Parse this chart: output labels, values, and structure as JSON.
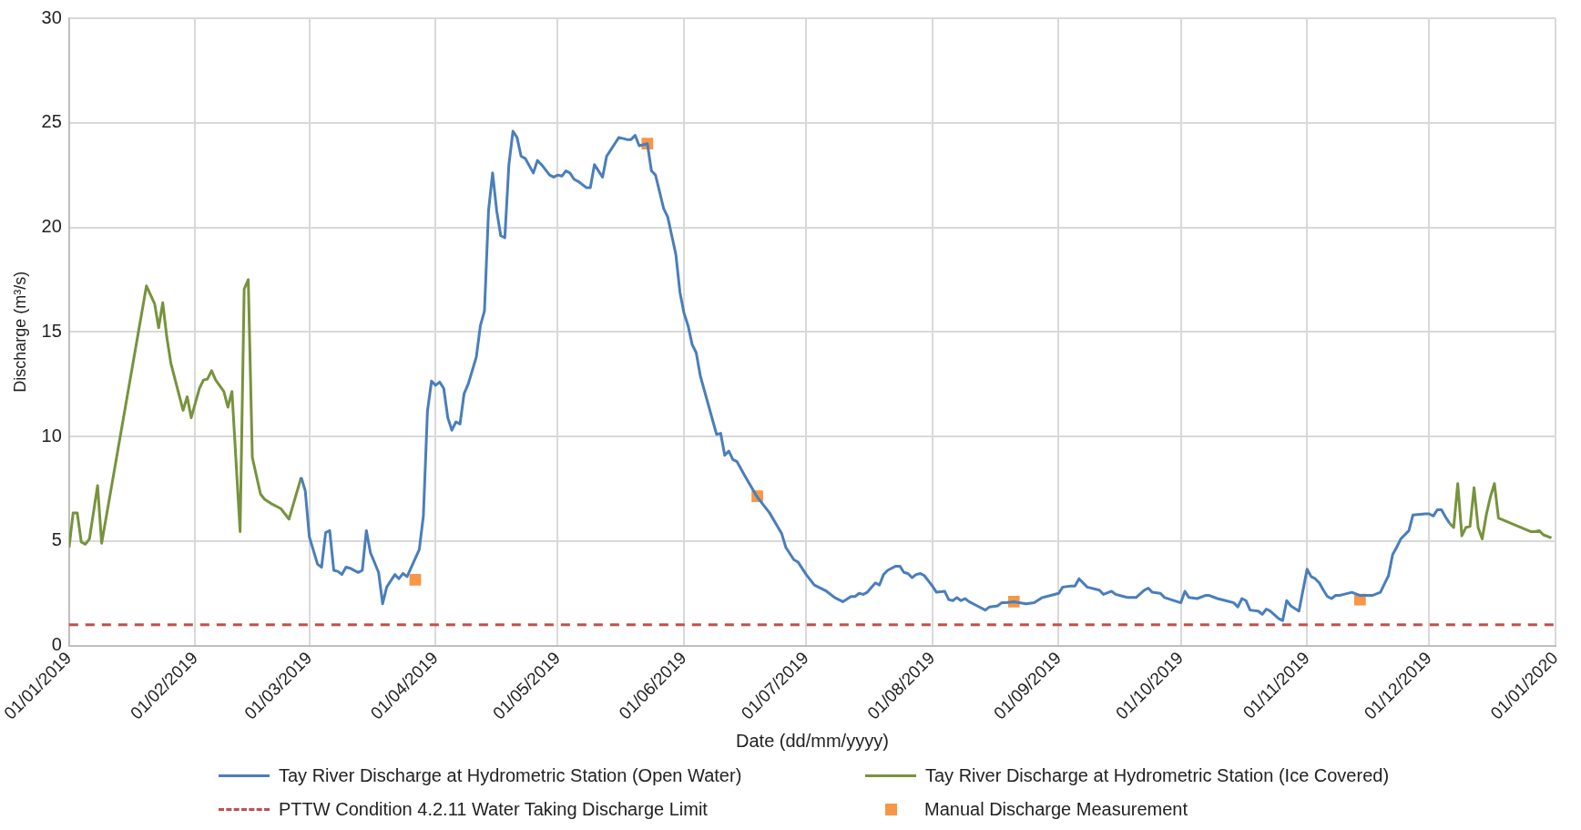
{
  "chart_data": {
    "type": "line",
    "xlabel": "Date (dd/mm/yyyy)",
    "ylabel": "Discharge (m³/s)",
    "xlim": [
      "2019-01-01",
      "2020-01-01"
    ],
    "xticks": [
      {
        "value": "2019-01-01",
        "label": "01/01/2019"
      },
      {
        "value": "2019-02-01",
        "label": "01/02/2019"
      },
      {
        "value": "2019-03-01",
        "label": "01/03/2019"
      },
      {
        "value": "2019-04-01",
        "label": "01/04/2019"
      },
      {
        "value": "2019-05-01",
        "label": "01/05/2019"
      },
      {
        "value": "2019-06-01",
        "label": "01/06/2019"
      },
      {
        "value": "2019-07-01",
        "label": "01/07/2019"
      },
      {
        "value": "2019-08-01",
        "label": "01/08/2019"
      },
      {
        "value": "2019-09-01",
        "label": "01/09/2019"
      },
      {
        "value": "2019-10-01",
        "label": "01/10/2019"
      },
      {
        "value": "2019-11-01",
        "label": "01/11/2019"
      },
      {
        "value": "2019-12-01",
        "label": "01/12/2019"
      },
      {
        "value": "2020-01-01",
        "label": "01/01/2020"
      }
    ],
    "ylim": [
      0,
      30
    ],
    "yticks": [
      0,
      5,
      10,
      15,
      20,
      25,
      30
    ],
    "grid": true,
    "legend": "bottom",
    "marker": "none",
    "line_style": "solid",
    "ref_lines": [
      {
        "axis": "y",
        "value": 1,
        "label": "PTTW Condition 4.2.11 Water Taking Discharge Limit",
        "color": "#c0504d",
        "line_style": "dashed"
      }
    ],
    "series": [
      {
        "name": "Tay River Discharge at Hydrometric Station (Open Water)",
        "color": "#4a7ebb",
        "x": [
          "2019-02-27",
          "2019-02-28",
          "2019-03-01",
          "2019-03-03",
          "2019-03-04",
          "2019-03-05",
          "2019-03-06",
          "2019-03-07",
          "2019-03-08",
          "2019-03-09",
          "2019-03-10",
          "2019-03-11",
          "2019-03-13",
          "2019-03-14",
          "2019-03-15",
          "2019-03-16",
          "2019-03-18",
          "2019-03-19",
          "2019-03-20",
          "2019-03-22",
          "2019-03-23",
          "2019-03-24",
          "2019-03-25",
          "2019-03-28",
          "2019-03-29",
          "2019-03-30",
          "2019-03-31",
          "2019-04-01",
          "2019-04-02",
          "2019-04-03",
          "2019-04-04",
          "2019-04-05",
          "2019-04-06",
          "2019-04-07",
          "2019-04-08",
          "2019-04-09",
          "2019-04-11",
          "2019-04-12",
          "2019-04-13",
          "2019-04-14",
          "2019-04-15",
          "2019-04-16",
          "2019-04-17",
          "2019-04-18",
          "2019-04-19",
          "2019-04-20",
          "2019-04-21",
          "2019-04-22",
          "2019-04-23",
          "2019-04-25",
          "2019-04-26",
          "2019-04-27",
          "2019-04-29",
          "2019-04-30",
          "2019-05-01",
          "2019-05-02",
          "2019-05-03",
          "2019-05-04",
          "2019-05-05",
          "2019-05-06",
          "2019-05-08",
          "2019-05-09",
          "2019-05-10",
          "2019-05-11",
          "2019-05-12",
          "2019-05-13",
          "2019-05-14",
          "2019-05-15",
          "2019-05-16",
          "2019-05-18",
          "2019-05-19",
          "2019-05-20",
          "2019-05-21",
          "2019-05-23",
          "2019-05-24",
          "2019-05-25",
          "2019-05-27",
          "2019-05-28",
          "2019-05-30",
          "2019-05-31",
          "2019-06-01",
          "2019-06-02",
          "2019-06-03",
          "2019-06-04",
          "2019-06-05",
          "2019-06-07",
          "2019-06-08",
          "2019-06-09",
          "2019-06-10",
          "2019-06-11",
          "2019-06-12",
          "2019-06-13",
          "2019-06-14",
          "2019-06-16",
          "2019-06-19",
          "2019-06-22",
          "2019-06-25",
          "2019-06-26",
          "2019-06-28",
          "2019-06-29",
          "2019-07-01",
          "2019-07-03",
          "2019-07-05",
          "2019-07-06",
          "2019-07-08",
          "2019-07-09",
          "2019-07-10",
          "2019-07-12",
          "2019-07-13",
          "2019-07-14",
          "2019-07-15",
          "2019-07-16",
          "2019-07-18",
          "2019-07-19",
          "2019-07-20",
          "2019-07-21",
          "2019-07-23",
          "2019-07-24",
          "2019-07-25",
          "2019-07-26",
          "2019-07-27",
          "2019-07-28",
          "2019-07-29",
          "2019-07-30",
          "2019-08-01",
          "2019-08-02",
          "2019-08-04",
          "2019-08-05",
          "2019-08-06",
          "2019-08-07",
          "2019-08-08",
          "2019-08-09",
          "2019-08-10",
          "2019-08-12",
          "2019-08-14",
          "2019-08-15",
          "2019-08-17",
          "2019-08-18",
          "2019-08-19",
          "2019-08-21",
          "2019-08-24",
          "2019-08-26",
          "2019-08-28",
          "2019-08-29",
          "2019-09-01",
          "2019-09-02",
          "2019-09-04",
          "2019-09-05",
          "2019-09-06",
          "2019-09-08",
          "2019-09-11",
          "2019-09-12",
          "2019-09-14",
          "2019-09-15",
          "2019-09-17",
          "2019-09-18",
          "2019-09-20",
          "2019-09-22",
          "2019-09-23",
          "2019-09-24",
          "2019-09-26",
          "2019-09-27",
          "2019-10-01",
          "2019-10-02",
          "2019-10-03",
          "2019-10-05",
          "2019-10-07",
          "2019-10-08",
          "2019-10-10",
          "2019-10-12",
          "2019-10-14",
          "2019-10-15",
          "2019-10-16",
          "2019-10-17",
          "2019-10-18",
          "2019-10-20",
          "2019-10-21",
          "2019-10-22",
          "2019-10-23",
          "2019-10-25",
          "2019-10-26",
          "2019-10-27",
          "2019-10-28",
          "2019-10-30",
          "2019-11-01",
          "2019-11-02",
          "2019-11-03",
          "2019-11-04",
          "2019-11-05",
          "2019-11-06",
          "2019-11-07",
          "2019-11-08",
          "2019-11-09",
          "2019-11-10",
          "2019-11-12",
          "2019-11-14",
          "2019-11-16",
          "2019-11-17",
          "2019-11-19",
          "2019-11-20",
          "2019-11-21",
          "2019-11-22",
          "2019-11-23",
          "2019-11-24",
          "2019-11-26",
          "2019-11-27",
          "2019-11-30",
          "2019-12-01",
          "2019-12-02",
          "2019-12-03",
          "2019-12-04",
          "2019-12-05",
          "2019-12-06"
        ],
        "values": [
          8.05,
          7.4,
          5.2,
          3.9,
          3.75,
          5.4,
          5.5,
          3.6,
          3.55,
          3.4,
          3.75,
          3.7,
          3.5,
          3.6,
          5.5,
          4.45,
          3.5,
          2.0,
          2.8,
          3.4,
          3.2,
          3.45,
          3.3,
          4.6,
          6.2,
          11.2,
          12.65,
          12.45,
          12.6,
          12.3,
          10.9,
          10.3,
          10.7,
          10.6,
          12.05,
          12.5,
          13.8,
          15.3,
          16.0,
          20.8,
          22.6,
          20.8,
          19.6,
          19.5,
          23.0,
          24.6,
          24.3,
          23.4,
          23.3,
          22.6,
          23.2,
          23.0,
          22.5,
          22.4,
          22.5,
          22.45,
          22.7,
          22.6,
          22.3,
          22.2,
          21.9,
          21.9,
          23.0,
          22.7,
          22.4,
          23.4,
          23.7,
          24.0,
          24.3,
          24.2,
          24.2,
          24.4,
          23.9,
          24.0,
          22.7,
          22.5,
          20.9,
          20.5,
          18.7,
          16.9,
          15.9,
          15.3,
          14.4,
          14.0,
          12.9,
          11.5,
          10.8,
          10.1,
          10.15,
          9.1,
          9.3,
          8.9,
          8.8,
          8.1,
          7.1,
          6.35,
          5.35,
          4.7,
          4.1,
          4.0,
          3.4,
          2.9,
          2.7,
          2.6,
          2.3,
          2.2,
          2.1,
          2.35,
          2.35,
          2.5,
          2.45,
          2.55,
          3.0,
          2.9,
          3.4,
          3.6,
          3.8,
          3.8,
          3.5,
          3.45,
          3.25,
          3.4,
          3.45,
          3.35,
          2.85,
          2.55,
          2.6,
          2.2,
          2.15,
          2.3,
          2.15,
          2.25,
          2.1,
          1.9,
          1.7,
          1.85,
          1.9,
          2.05,
          2.05,
          2.1,
          2.0,
          2.05,
          2.3,
          2.35,
          2.5,
          2.8,
          2.85,
          2.85,
          3.2,
          2.8,
          2.65,
          2.45,
          2.6,
          2.45,
          2.35,
          2.3,
          2.3,
          2.65,
          2.75,
          2.55,
          2.5,
          2.3,
          2.05,
          2.6,
          2.3,
          2.25,
          2.4,
          2.4,
          2.25,
          2.15,
          2.05,
          1.85,
          2.25,
          2.15,
          1.7,
          1.65,
          1.5,
          1.75,
          1.65,
          1.3,
          1.2,
          2.15,
          1.9,
          1.65,
          3.65,
          3.3,
          3.2,
          3.0,
          2.65,
          2.35,
          2.25,
          2.4,
          2.4,
          2.45,
          2.55,
          2.4,
          2.4,
          2.4,
          2.55,
          2.95,
          3.35,
          4.35,
          4.7,
          5.1,
          5.5,
          6.25,
          6.3,
          6.3,
          6.2,
          6.5,
          6.5,
          6.15,
          5.85
        ]
      },
      {
        "name": "Tay River Discharge at Hydrometric Station (Ice Covered)",
        "color": "#77933c",
        "x": [
          "2019-01-01",
          "2019-01-02",
          "2019-01-03",
          "2019-01-04",
          "2019-01-05",
          "2019-01-06",
          "2019-01-08",
          "2019-01-09",
          "2019-01-20",
          "2019-01-22",
          "2019-01-23",
          "2019-01-24",
          "2019-01-25",
          "2019-01-26",
          "2019-01-29",
          "2019-01-30",
          "2019-01-31",
          "2019-02-02",
          "2019-02-03",
          "2019-02-04",
          "2019-02-05",
          "2019-02-06",
          "2019-02-08",
          "2019-02-09",
          "2019-02-10",
          "2019-02-12",
          "2019-02-13",
          "2019-02-14",
          "2019-02-15",
          "2019-02-17",
          "2019-02-18",
          "2019-02-20",
          "2019-02-22",
          "2019-02-24",
          "2019-02-27",
          "2019-07-01",
          "2019-12-06",
          "2019-12-07",
          "2019-12-08",
          "2019-12-09",
          "2019-12-10",
          "2019-12-11",
          "2019-12-12",
          "2019-12-13",
          "2019-12-14",
          "2019-12-15",
          "2019-12-16",
          "2019-12-17",
          "2019-12-18",
          "2019-12-26",
          "2019-12-27",
          "2019-12-28",
          "2019-12-29",
          "2019-12-31"
        ],
        "values": [
          4.7,
          6.35,
          6.35,
          4.95,
          4.85,
          5.1,
          7.65,
          4.9,
          17.2,
          16.35,
          15.2,
          16.4,
          14.75,
          13.5,
          11.25,
          11.9,
          10.9,
          12.3,
          12.7,
          12.75,
          13.15,
          12.7,
          12.15,
          11.4,
          12.15,
          5.45,
          17.05,
          17.5,
          9.0,
          7.25,
          7.0,
          6.75,
          6.55,
          6.05,
          8.05,
          null,
          5.85,
          5.65,
          7.75,
          5.25,
          5.65,
          5.7,
          7.55,
          5.65,
          5.1,
          6.25,
          7.1,
          7.75,
          6.1,
          5.45,
          5.45,
          5.5,
          5.3,
          5.15
        ]
      },
      {
        "name": "Manual Discharge Measurement",
        "type": "scatter",
        "marker": "square",
        "color": "#f79646",
        "x": [
          "2019-03-27",
          "2019-05-23",
          "2019-06-19",
          "2019-08-21",
          "2019-11-14"
        ],
        "values": [
          3.15,
          24.0,
          7.15,
          2.1,
          2.2
        ]
      }
    ]
  }
}
